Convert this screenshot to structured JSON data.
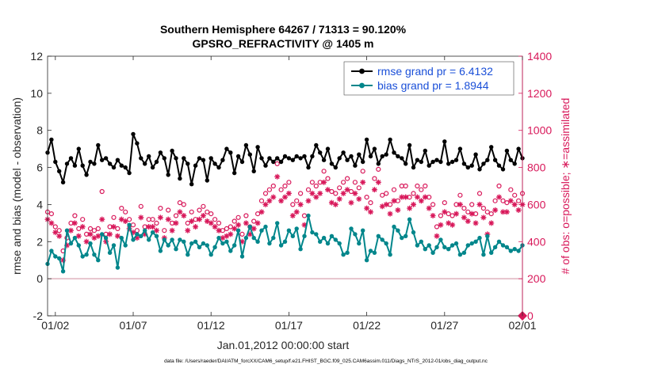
{
  "chart_data": {
    "type": "line",
    "title": "Southern Hemisphere 64267 / 71313 = 90.120%",
    "subtitle": "GPSRO_REFRACTIVITY @ 1405 m",
    "xlabel": "Jan.01,2012 00:00:00 start",
    "ylabel": "rmse and bias (model - observation)",
    "y2label": "# of obs: o=possible; ∗=assimilated",
    "footnote": "data file: /Users/raeder/DAI/ATM_forcXX/CAM6_setup/f.e21.FHIST_BGC.f09_025.CAM6assim.011/Diags_NTrS_2012-01/obs_diag_output.nc",
    "xlim": [
      0.5,
      31.0
    ],
    "ylim": [
      -2,
      12
    ],
    "y2lim": [
      0,
      1400
    ],
    "x_ticks": [
      1,
      6,
      11,
      16,
      21,
      26,
      31
    ],
    "x_tick_labels": [
      "01/02",
      "01/07",
      "01/12",
      "01/17",
      "01/22",
      "01/27",
      "02/01"
    ],
    "y_ticks": [
      -2,
      0,
      2,
      4,
      6,
      8,
      10,
      12
    ],
    "y2_ticks": [
      0,
      200,
      400,
      600,
      800,
      1000,
      1200,
      1400
    ],
    "zero_line": 0,
    "grid": false,
    "legend_position": "top-right",
    "legend": [
      {
        "label": "rmse grand pr = 6.4132"
      },
      {
        "label": "bias grand pr = 1.8944"
      }
    ],
    "colors": {
      "rmse": "#000000",
      "bias": "#00868b",
      "obs": "#d8185a",
      "zero_line": "#d9a4b0",
      "legend_text": "#1a4fd8"
    },
    "x": [
      0.0,
      0.25,
      0.5,
      0.75,
      1.0,
      1.25,
      1.5,
      1.75,
      2.0,
      2.25,
      2.5,
      2.75,
      3.0,
      3.25,
      3.5,
      3.75,
      4.0,
      4.25,
      4.5,
      4.75,
      5.0,
      5.25,
      5.5,
      5.75,
      6.0,
      6.25,
      6.5,
      6.75,
      7.0,
      7.25,
      7.5,
      7.75,
      8.0,
      8.25,
      8.5,
      8.75,
      9.0,
      9.25,
      9.5,
      9.75,
      10.0,
      10.25,
      10.5,
      10.75,
      11.0,
      11.25,
      11.5,
      11.75,
      12.0,
      12.25,
      12.5,
      12.75,
      13.0,
      13.25,
      13.5,
      13.75,
      14.0,
      14.25,
      14.5,
      14.75,
      15.0,
      15.25,
      15.5,
      15.75,
      16.0,
      16.25,
      16.5,
      16.75,
      17.0,
      17.25,
      17.5,
      17.75,
      18.0,
      18.25,
      18.5,
      18.75,
      19.0,
      19.25,
      19.5,
      19.75,
      20.0,
      20.25,
      20.5,
      20.75,
      21.0,
      21.25,
      21.5,
      21.75,
      22.0,
      22.25,
      22.5,
      22.75,
      23.0,
      23.25,
      23.5,
      23.75,
      24.0,
      24.25,
      24.5,
      24.75,
      25.0,
      25.25,
      25.5,
      25.75,
      26.0,
      26.25,
      26.5,
      26.75,
      27.0,
      27.25,
      27.5,
      27.75,
      28.0,
      28.25,
      28.5,
      28.75,
      29.0,
      29.25,
      29.5,
      29.75,
      30.0,
      30.25,
      30.5,
      30.75,
      31.0
    ],
    "series": [
      {
        "name": "rmse",
        "axis": "left",
        "marker": "dot",
        "values": [
          6.3,
          6.2,
          6.8,
          7.5,
          6.3,
          5.8,
          5.2,
          6.2,
          6.5,
          6.1,
          7.0,
          6.1,
          5.6,
          6.3,
          6.2,
          7.2,
          6.4,
          6.5,
          6.2,
          6.0,
          6.4,
          6.1,
          6.0,
          5.7,
          7.8,
          7.3,
          6.5,
          6.2,
          6.6,
          6.0,
          6.3,
          6.8,
          6.5,
          5.6,
          6.9,
          6.5,
          5.4,
          6.5,
          6.2,
          5.1,
          6.1,
          6.5,
          6.4,
          5.3,
          6.5,
          6.2,
          6.0,
          6.4,
          7.0,
          6.8,
          5.7,
          6.6,
          6.3,
          7.2,
          6.7,
          5.8,
          7.1,
          6.5,
          6.1,
          6.5,
          6.3,
          6.5,
          6.3,
          6.6,
          6.5,
          6.4,
          6.6,
          6.5,
          6.6,
          6.0,
          6.6,
          7.2,
          6.8,
          6.4,
          7.0,
          6.2,
          6.0,
          6.5,
          6.8,
          6.4,
          6.6,
          6.1,
          6.7,
          6.3,
          7.5,
          6.6,
          7.0,
          6.2,
          6.6,
          6.7,
          7.5,
          6.8,
          6.6,
          6.5,
          6.2,
          7.2,
          6.0,
          6.4,
          6.3,
          6.9,
          6.1,
          6.3,
          6.4,
          6.3,
          7.4,
          6.2,
          6.3,
          6.4,
          7.0,
          6.2,
          6.0,
          6.1,
          6.7,
          5.9,
          6.2,
          6.4,
          7.1,
          6.4,
          6.1,
          5.9,
          6.9,
          6.4,
          6.2,
          7.0,
          6.5
        ]
      },
      {
        "name": "bias",
        "axis": "left",
        "marker": "dot",
        "values": [
          1.2,
          1.6,
          0.8,
          1.5,
          1.2,
          1.1,
          0.4,
          2.6,
          1.9,
          2.2,
          1.8,
          1.2,
          1.3,
          1.9,
          1.3,
          1.0,
          2.4,
          2.2,
          1.4,
          1.8,
          0.6,
          2.2,
          1.8,
          2.9,
          2.1,
          2.4,
          2.3,
          2.6,
          2.1,
          2.5,
          2.3,
          1.5,
          2.1,
          1.8,
          2.1,
          1.6,
          2.1,
          2.0,
          1.3,
          1.9,
          2.0,
          1.7,
          1.9,
          1.8,
          1.3,
          1.7,
          2.2,
          1.9,
          2.0,
          1.5,
          1.8,
          2.6,
          1.2,
          2.2,
          2.8,
          2.2,
          2.0,
          2.6,
          2.8,
          1.9,
          2.2,
          3.0,
          1.8,
          2.0,
          2.6,
          2.3,
          2.7,
          1.6,
          2.3,
          3.4,
          2.5,
          2.4,
          2.0,
          2.2,
          1.9,
          2.3,
          2.1,
          1.9,
          1.3,
          1.4,
          2.7,
          2.4,
          1.9,
          2.6,
          1.0,
          1.5,
          1.4,
          2.3,
          2.1,
          1.9,
          1.3,
          2.8,
          2.6,
          2.2,
          2.3,
          3.2,
          2.5,
          1.8,
          2.0,
          1.6,
          1.8,
          1.4,
          1.7,
          2.1,
          1.7,
          1.6,
          1.8,
          1.9,
          1.3,
          1.4,
          1.8,
          1.9,
          2.0,
          2.2,
          1.3,
          2.3,
          1.4,
          1.7,
          2.0,
          1.8,
          1.7,
          1.5,
          1.6,
          1.5,
          1.8
        ]
      },
      {
        "name": "possible",
        "axis": "right",
        "marker": "circle",
        "values": [
          500,
          520,
          560,
          550,
          480,
          460,
          350,
          420,
          500,
          540,
          470,
          520,
          440,
          470,
          460,
          470,
          670,
          440,
          480,
          530,
          470,
          580,
          560,
          520,
          490,
          460,
          590,
          480,
          520,
          520,
          500,
          580,
          460,
          570,
          500,
          540,
          610,
          600,
          500,
          560,
          520,
          570,
          590,
          560,
          550,
          520,
          500,
          460,
          470,
          480,
          510,
          530,
          440,
          540,
          480,
          510,
          550,
          620,
          660,
          680,
          700,
          820,
          680,
          700,
          720,
          600,
          620,
          660,
          540,
          680,
          720,
          700,
          720,
          780,
          740,
          670,
          660,
          690,
          720,
          740,
          670,
          720,
          690,
          780,
          640,
          610,
          740,
          790,
          650,
          660,
          600,
          680,
          620,
          700,
          700,
          640,
          660,
          700,
          680,
          700,
          640,
          600,
          480,
          540,
          610,
          550,
          540,
          600,
          650,
          580,
          560,
          600,
          550,
          660,
          580,
          560,
          550,
          620,
          700,
          620,
          610,
          680,
          650,
          620,
          660
        ]
      },
      {
        "name": "assimilated",
        "axis": "right",
        "marker": "star",
        "values": [
          460,
          480,
          520,
          500,
          450,
          430,
          300,
          380,
          460,
          500,
          430,
          480,
          400,
          440,
          420,
          430,
          520,
          400,
          440,
          480,
          430,
          520,
          510,
          470,
          450,
          420,
          530,
          440,
          480,
          480,
          460,
          530,
          420,
          520,
          460,
          500,
          560,
          540,
          460,
          510,
          480,
          520,
          540,
          510,
          500,
          480,
          460,
          420,
          430,
          440,
          470,
          490,
          400,
          500,
          440,
          470,
          500,
          560,
          600,
          620,
          640,
          750,
          620,
          640,
          660,
          540,
          560,
          600,
          490,
          620,
          660,
          640,
          660,
          720,
          680,
          610,
          600,
          630,
          660,
          680,
          610,
          660,
          630,
          720,
          580,
          560,
          680,
          720,
          590,
          600,
          550,
          620,
          570,
          640,
          640,
          580,
          600,
          640,
          620,
          640,
          580,
          540,
          430,
          490,
          560,
          500,
          490,
          550,
          600,
          530,
          510,
          550,
          500,
          600,
          530,
          440,
          500,
          570,
          640,
          560,
          560,
          620,
          600,
          570,
          600
        ]
      }
    ]
  }
}
